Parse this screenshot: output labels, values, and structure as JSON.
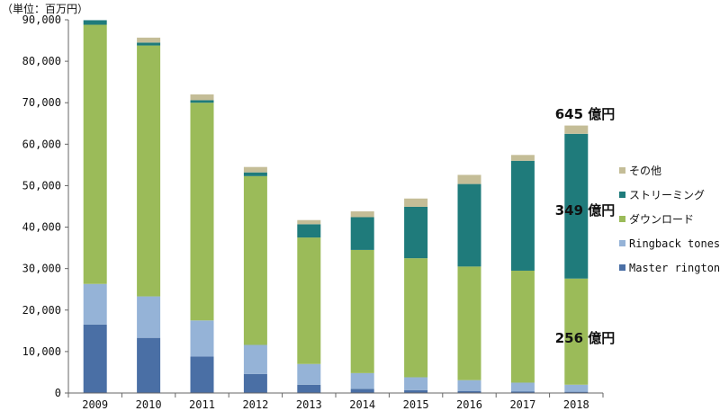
{
  "chart_data": {
    "type": "bar",
    "stacked": true,
    "unit_label": "（単位：百万円）",
    "categories": [
      "2009",
      "2010",
      "2011",
      "2012",
      "2013",
      "2014",
      "2015",
      "2016",
      "2017",
      "2018"
    ],
    "ylim": [
      0,
      90000
    ],
    "yticks": [
      0,
      10000,
      20000,
      30000,
      40000,
      50000,
      60000,
      70000,
      80000,
      90000
    ],
    "ytick_labels": [
      "0",
      "10,000",
      "20,000",
      "30,000",
      "40,000",
      "50,000",
      "60,000",
      "70,000",
      "80,000",
      "90,000"
    ],
    "grid": false,
    "legend_position": "right",
    "series": [
      {
        "name": "Master ringtones",
        "color": "#4a6fa5",
        "values": [
          16500,
          13300,
          8800,
          4600,
          2000,
          1000,
          700,
          500,
          400,
          300
        ]
      },
      {
        "name": "Ringback tones",
        "color": "#95b3d7",
        "values": [
          9800,
          10000,
          8700,
          7000,
          5000,
          3800,
          3100,
          2600,
          2100,
          1700
        ]
      },
      {
        "name": "ダウンロード",
        "color": "#9bbb59",
        "values": [
          62500,
          60500,
          52500,
          40700,
          30500,
          29700,
          28700,
          27400,
          27000,
          25600
        ]
      },
      {
        "name": "ストリーミング",
        "color": "#1f7b7b",
        "values": [
          1100,
          700,
          600,
          900,
          3200,
          7900,
          12400,
          19900,
          26500,
          34900
        ]
      },
      {
        "name": "その他",
        "color": "#c4bd97",
        "values": [
          0,
          1200,
          1400,
          1300,
          1000,
          1400,
          2000,
          2200,
          1400,
          2000
        ]
      }
    ],
    "annotations": [
      "645 億円",
      "349 億円",
      "256 億円"
    ]
  }
}
